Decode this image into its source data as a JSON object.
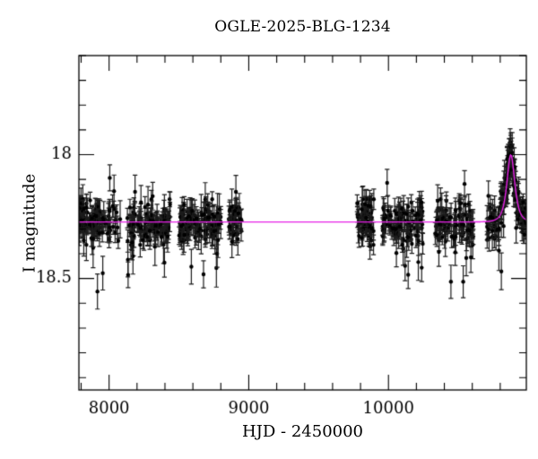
{
  "chart_data": {
    "type": "scatter",
    "title": "OGLE-2025-BLG-1234",
    "xlabel": "HJD - 2450000",
    "ylabel": "I magnitude",
    "xlim": [
      7784,
      10987
    ],
    "ylim": [
      18.95,
      17.6
    ],
    "y_axis_inverted": true,
    "grid": false,
    "legend": "none",
    "x_major_ticks": [
      {
        "value": 8000,
        "label": "8000"
      },
      {
        "value": 9000,
        "label": "9000"
      },
      {
        "value": 10000,
        "label": "10000"
      }
    ],
    "x_minor_tick_step": 200,
    "y_major_ticks": [
      {
        "value": 18,
        "label": "18"
      },
      {
        "value": 18.5,
        "label": "18.5"
      }
    ],
    "y_minor_tick_step": 0.1,
    "colors": {
      "background": "#ffffff",
      "frame": "#000000",
      "data_points": "#000000",
      "error_bars": "#1c1c1c",
      "model_curve": "#e820e8"
    },
    "model": {
      "type": "paczynski_point_lens",
      "baseline_mag": 18.272,
      "peak_mag": 18.0,
      "t0": 10876,
      "tE": 32,
      "u0": 1.09
    },
    "seasons": [
      {
        "t_start": 7784,
        "t_end": 8080,
        "n_points": 115
      },
      {
        "t_start": 8130,
        "t_end": 8440,
        "n_points": 115
      },
      {
        "t_start": 8500,
        "t_end": 8800,
        "n_points": 110
      },
      {
        "t_start": 8855,
        "t_end": 8950,
        "n_points": 38
      },
      {
        "t_start": 9770,
        "t_end": 9895,
        "n_points": 55
      },
      {
        "t_start": 9958,
        "t_end": 10248,
        "n_points": 110
      },
      {
        "t_start": 10332,
        "t_end": 10610,
        "n_points": 100
      },
      {
        "t_start": 10706,
        "t_end": 10985,
        "n_points": 110
      },
      {
        "t_start": 10845,
        "t_end": 10915,
        "n_points": 40
      }
    ],
    "scatter_noise": {
      "sigma_mag": 0.04,
      "clamp_sigma": 2.3,
      "outlier_fraction": 0.08,
      "err_min_mag": 0.03,
      "err_extra_mag": 0.05,
      "random_seed": 11
    }
  }
}
